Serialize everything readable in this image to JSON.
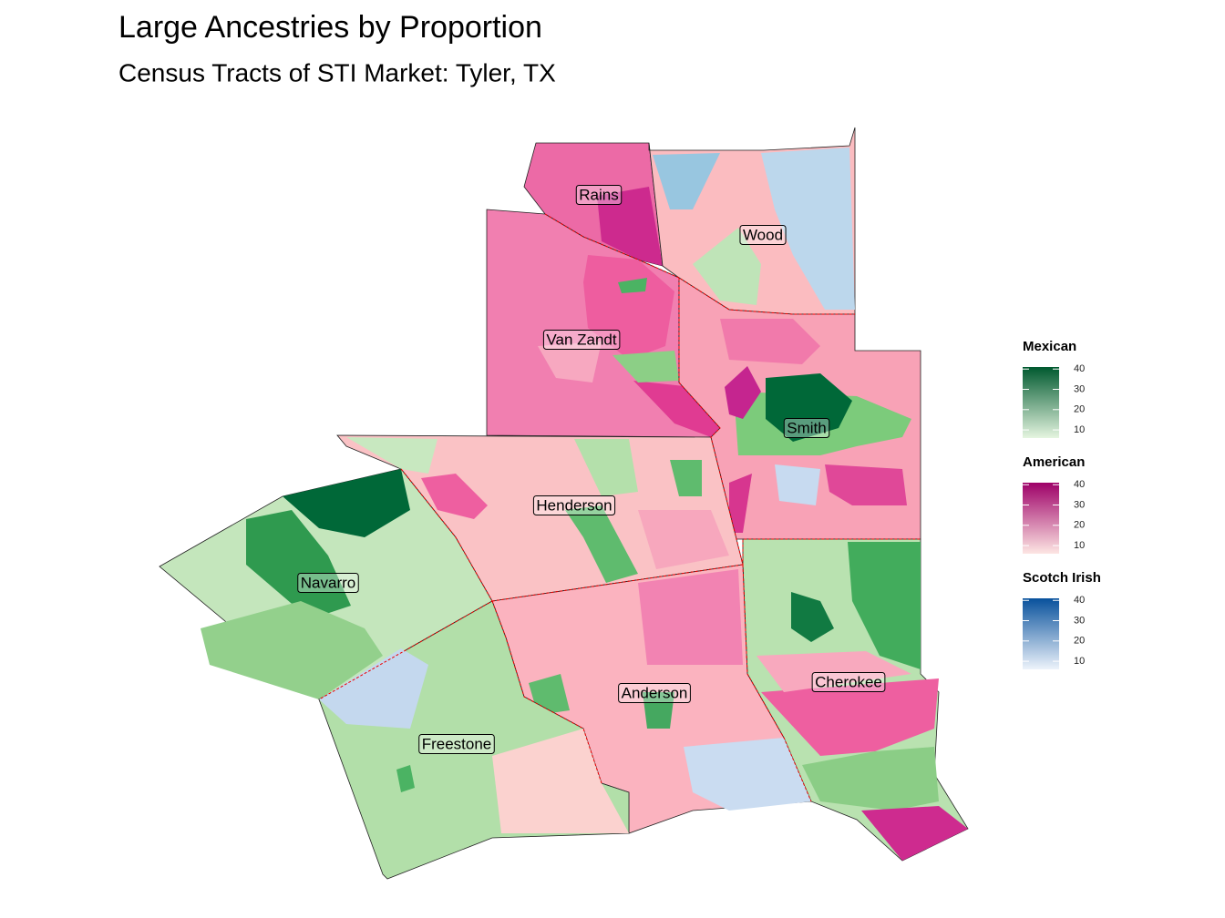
{
  "header": {
    "title": "Large Ancestries by Proportion",
    "subtitle": "Census Tracts of STI Market: Tyler, TX"
  },
  "counties": [
    {
      "label": "Rains"
    },
    {
      "label": "Wood"
    },
    {
      "label": "Van Zandt"
    },
    {
      "label": "Smith"
    },
    {
      "label": "Henderson"
    },
    {
      "label": "Navarro"
    },
    {
      "label": "Cherokee"
    },
    {
      "label": "Anderson"
    },
    {
      "label": "Freestone"
    }
  ],
  "legends": [
    {
      "title": "Mexican",
      "range": [
        6,
        41
      ],
      "ticks": [
        10,
        20,
        30,
        40
      ],
      "colors": [
        "#e5f5e0",
        "#00592f"
      ]
    },
    {
      "title": "American",
      "range": [
        6,
        41
      ],
      "ticks": [
        10,
        20,
        30,
        40
      ],
      "colors": [
        "#fde6e3",
        "#9e0168"
      ]
    },
    {
      "title": "Scotch Irish",
      "range": [
        6,
        41
      ],
      "ticks": [
        10,
        20,
        30,
        40
      ],
      "colors": [
        "#edf3fb",
        "#08519c"
      ]
    }
  ]
}
